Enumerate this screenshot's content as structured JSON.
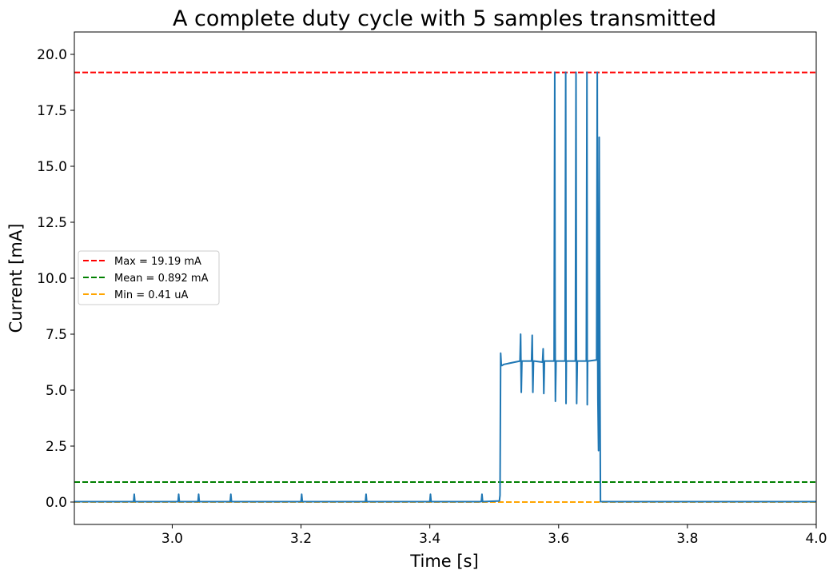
{
  "chart_data": {
    "type": "line",
    "title": "A complete duty cycle with 5 samples transmitted",
    "xlabel": "Time [s]",
    "ylabel": "Current [mA]",
    "xlim": [
      2.848,
      4.0
    ],
    "ylim": [
      -1.0,
      21.0
    ],
    "xticks": [
      3.0,
      3.2,
      3.4,
      3.6,
      3.8,
      4.0
    ],
    "xtick_labels": [
      "3.0",
      "3.2",
      "3.4",
      "3.6",
      "3.8",
      "4.0"
    ],
    "yticks": [
      0.0,
      2.5,
      5.0,
      7.5,
      10.0,
      12.5,
      15.0,
      17.5,
      20.0
    ],
    "ytick_labels": [
      "0.0",
      "2.5",
      "5.0",
      "7.5",
      "10.0",
      "12.5",
      "15.0",
      "17.5",
      "20.0"
    ],
    "grid": false,
    "legend_position": "center-left",
    "series": [
      {
        "color": "#1f77b4",
        "style": "solid",
        "x": [
          2.848,
          2.94,
          2.941,
          2.942,
          3.009,
          3.01,
          3.011,
          3.04,
          3.041,
          3.042,
          3.09,
          3.091,
          3.092,
          3.2,
          3.201,
          3.202,
          3.3,
          3.301,
          3.302,
          3.4,
          3.401,
          3.402,
          3.48,
          3.481,
          3.482,
          3.508,
          3.509,
          3.51,
          3.511,
          3.512,
          3.515,
          3.54,
          3.541,
          3.542,
          3.543,
          3.544,
          3.558,
          3.559,
          3.56,
          3.561,
          3.562,
          3.575,
          3.576,
          3.577,
          3.578,
          3.579,
          3.593,
          3.594,
          3.5945,
          3.595,
          3.596,
          3.61,
          3.611,
          3.6115,
          3.612,
          3.613,
          3.626,
          3.627,
          3.6275,
          3.628,
          3.629,
          3.643,
          3.644,
          3.6445,
          3.645,
          3.646,
          3.659,
          3.66,
          3.6605,
          3.661,
          3.662,
          3.663,
          3.664,
          3.665,
          3.8,
          4.0
        ],
        "y": [
          0.02,
          0.02,
          0.35,
          0.02,
          0.02,
          0.35,
          0.02,
          0.02,
          0.35,
          0.02,
          0.02,
          0.35,
          0.02,
          0.02,
          0.35,
          0.02,
          0.02,
          0.35,
          0.02,
          0.02,
          0.35,
          0.02,
          0.02,
          0.35,
          0.02,
          0.05,
          0.3,
          6.65,
          6.1,
          6.1,
          6.15,
          6.3,
          7.5,
          4.9,
          6.3,
          6.3,
          6.3,
          7.45,
          4.9,
          6.3,
          6.3,
          6.25,
          6.85,
          4.85,
          6.3,
          6.3,
          6.3,
          19.2,
          8.2,
          4.5,
          6.3,
          6.3,
          19.2,
          4.4,
          6.3,
          6.3,
          6.3,
          19.2,
          8.1,
          4.4,
          6.3,
          6.3,
          19.2,
          4.35,
          6.3,
          6.3,
          6.35,
          19.2,
          8.0,
          4.6,
          2.3,
          16.3,
          6.3,
          0.02,
          0.02,
          0.02
        ]
      }
    ],
    "reference_lines": [
      {
        "label": "Max = 19.19 mA",
        "y": 19.19,
        "color": "#ff0000"
      },
      {
        "label": "Mean = 0.892 mA",
        "y": 0.892,
        "color": "#008000"
      },
      {
        "label": "Min = 0.41 uA",
        "y": 0.00041,
        "color": "#ffa500"
      }
    ]
  }
}
